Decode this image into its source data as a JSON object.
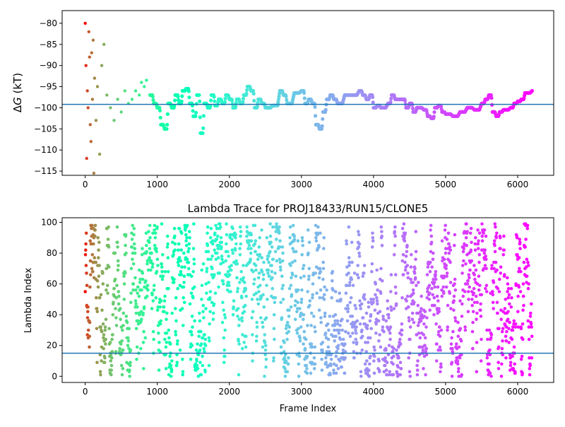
{
  "chart_data": [
    {
      "type": "scatter",
      "title": "",
      "xlabel": "",
      "ylabel": "ΔG (kT)",
      "ylabel_prefix": "Δ",
      "ylabel_var": "G",
      "ylabel_unit": " (kT)",
      "xlim": [
        -320,
        6500
      ],
      "ylim": [
        -116,
        -77
      ],
      "xticks": [
        0,
        1000,
        2000,
        3000,
        4000,
        5000,
        6000
      ],
      "yticks": [
        -115,
        -110,
        -105,
        -100,
        -95,
        -90,
        -85,
        -80
      ],
      "hline": -99.2,
      "hline_color": "#1f77b4",
      "color_map": "rainbow (red at start, violet at end)",
      "trace": [
        [
          0,
          -80
        ],
        [
          10,
          -90
        ],
        [
          20,
          -112
        ],
        [
          30,
          -96
        ],
        [
          40,
          -100
        ],
        [
          50,
          -82
        ],
        [
          60,
          -88
        ],
        [
          70,
          -104
        ],
        [
          80,
          -108
        ],
        [
          90,
          -87
        ],
        [
          100,
          -98
        ],
        [
          110,
          -84
        ],
        [
          120,
          -115.5
        ],
        [
          130,
          -93
        ],
        [
          150,
          -103
        ],
        [
          170,
          -95
        ],
        [
          200,
          -111
        ],
        [
          230,
          -90
        ],
        [
          260,
          -85
        ],
        [
          300,
          -97
        ],
        [
          350,
          -100
        ],
        [
          400,
          -103
        ],
        [
          450,
          -98
        ],
        [
          500,
          -101
        ],
        [
          550,
          -96
        ],
        [
          600,
          -99
        ],
        [
          650,
          -98
        ],
        [
          700,
          -96
        ],
        [
          750,
          -97
        ],
        [
          780,
          -94
        ],
        [
          820,
          -95
        ],
        [
          850,
          -93.5
        ],
        [
          900,
          -97
        ],
        [
          950,
          -99
        ],
        [
          1000,
          -100
        ],
        [
          1050,
          -104
        ],
        [
          1100,
          -105
        ],
        [
          1150,
          -99
        ],
        [
          1200,
          -100
        ],
        [
          1250,
          -97
        ],
        [
          1300,
          -99
        ],
        [
          1350,
          -96
        ],
        [
          1400,
          -95.5
        ],
        [
          1450,
          -99
        ],
        [
          1500,
          -102
        ],
        [
          1550,
          -97
        ],
        [
          1600,
          -106
        ],
        [
          1650,
          -99
        ],
        [
          1700,
          -100
        ],
        [
          1750,
          -97
        ],
        [
          1800,
          -99.5
        ],
        [
          1850,
          -98
        ],
        [
          1900,
          -99
        ],
        [
          1950,
          -97
        ],
        [
          2000,
          -98
        ],
        [
          2050,
          -100
        ],
        [
          2100,
          -98
        ],
        [
          2150,
          -99
        ],
        [
          2200,
          -97
        ],
        [
          2250,
          -95
        ],
        [
          2300,
          -96
        ],
        [
          2350,
          -100
        ],
        [
          2400,
          -98
        ],
        [
          2450,
          -99
        ],
        [
          2500,
          -100
        ],
        [
          2600,
          -99.5
        ],
        [
          2700,
          -96
        ],
        [
          2750,
          -97
        ],
        [
          2800,
          -99
        ],
        [
          2900,
          -96.5
        ],
        [
          3000,
          -96
        ],
        [
          3050,
          -99
        ],
        [
          3100,
          -98
        ],
        [
          3150,
          -99
        ],
        [
          3200,
          -104
        ],
        [
          3250,
          -105
        ],
        [
          3300,
          -101
        ],
        [
          3350,
          -98
        ],
        [
          3400,
          -97
        ],
        [
          3450,
          -98
        ],
        [
          3500,
          -99
        ],
        [
          3600,
          -97
        ],
        [
          3700,
          -97
        ],
        [
          3800,
          -96
        ],
        [
          3850,
          -97
        ],
        [
          3900,
          -98
        ],
        [
          3950,
          -97
        ],
        [
          4000,
          -100
        ],
        [
          4050,
          -99.5
        ],
        [
          4100,
          -100
        ],
        [
          4200,
          -99
        ],
        [
          4250,
          -97
        ],
        [
          4300,
          -98
        ],
        [
          4400,
          -98
        ],
        [
          4450,
          -100
        ],
        [
          4500,
          -99
        ],
        [
          4550,
          -101
        ],
        [
          4600,
          -100
        ],
        [
          4700,
          -100.5
        ],
        [
          4750,
          -102
        ],
        [
          4800,
          -102.5
        ],
        [
          4850,
          -100
        ],
        [
          4900,
          -99.5
        ],
        [
          4950,
          -101
        ],
        [
          5000,
          -101.5
        ],
        [
          5100,
          -102
        ],
        [
          5200,
          -101
        ],
        [
          5300,
          -100
        ],
        [
          5400,
          -100.5
        ],
        [
          5500,
          -99
        ],
        [
          5550,
          -98
        ],
        [
          5600,
          -97
        ],
        [
          5650,
          -101
        ],
        [
          5700,
          -102
        ],
        [
          5750,
          -101
        ],
        [
          5800,
          -100.5
        ],
        [
          5900,
          -100
        ],
        [
          5950,
          -99
        ],
        [
          6000,
          -98.5
        ],
        [
          6050,
          -98
        ],
        [
          6100,
          -96.5
        ],
        [
          6200,
          -96
        ]
      ]
    },
    {
      "type": "scatter",
      "title": "Lambda Trace for PROJ18433/RUN15/CLONE5",
      "xlabel": "Frame Index",
      "ylabel": "Lambda Index",
      "xlim": [
        -320,
        6500
      ],
      "ylim": [
        -4,
        103
      ],
      "xticks": [
        0,
        1000,
        2000,
        3000,
        4000,
        5000,
        6000
      ],
      "yticks": [
        0,
        20,
        40,
        60,
        80,
        100
      ],
      "hline": 15,
      "hline_color": "#1f77b4",
      "color_map": "rainbow (red at start, violet at end)",
      "frame_range": [
        0,
        6200
      ],
      "lambda_range": [
        0,
        99
      ],
      "points_per_frame_bin": 1,
      "frame_bin_width": 3
    }
  ]
}
